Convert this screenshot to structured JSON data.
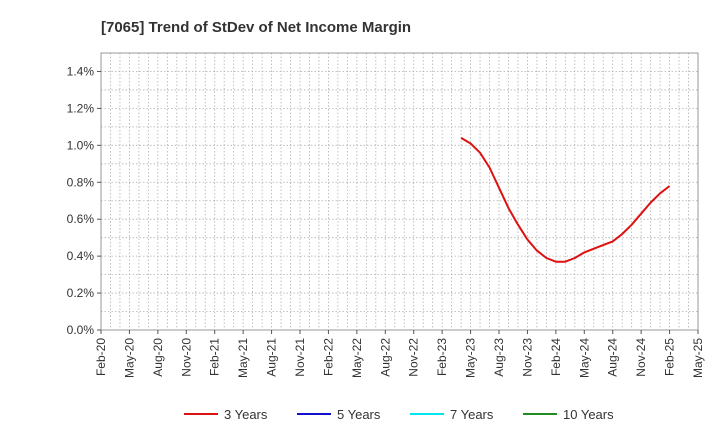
{
  "chart_data": {
    "type": "line",
    "title": "[7065]  Trend of StDev of Net Income Margin",
    "xlabel": "",
    "ylabel": "",
    "x_tick_labels": [
      "Feb-20",
      "May-20",
      "Aug-20",
      "Nov-20",
      "Feb-21",
      "May-21",
      "Aug-21",
      "Nov-21",
      "Feb-22",
      "May-22",
      "Aug-22",
      "Nov-22",
      "Feb-23",
      "May-23",
      "Aug-23",
      "Nov-23",
      "Feb-24",
      "May-24",
      "Aug-24",
      "Nov-24",
      "Feb-25",
      "May-25"
    ],
    "y_tick_labels": [
      "0.0%",
      "0.2%",
      "0.4%",
      "0.6%",
      "0.8%",
      "1.0%",
      "1.2%",
      "1.4%"
    ],
    "ylim": [
      0,
      1.5
    ],
    "grid": true,
    "legend_position": "bottom",
    "series": [
      {
        "name": "3 Years",
        "color": "#dd1111",
        "x": [
          "Apr-23",
          "May-23",
          "Jun-23",
          "Jul-23",
          "Aug-23",
          "Sep-23",
          "Oct-23",
          "Nov-23",
          "Dec-23",
          "Jan-24",
          "Feb-24",
          "Mar-24",
          "Apr-24",
          "May-24",
          "Jun-24",
          "Jul-24",
          "Aug-24",
          "Sep-24",
          "Oct-24",
          "Nov-24",
          "Dec-24",
          "Jan-25",
          "Feb-25"
        ],
        "values": [
          1.04,
          1.01,
          0.96,
          0.88,
          0.77,
          0.66,
          0.57,
          0.49,
          0.43,
          0.39,
          0.37,
          0.37,
          0.39,
          0.42,
          0.44,
          0.46,
          0.48,
          0.52,
          0.57,
          0.63,
          0.69,
          0.74,
          0.78
        ]
      },
      {
        "name": "5 Years",
        "color": "#1111cc",
        "x": [],
        "values": []
      },
      {
        "name": "7 Years",
        "color": "#00e5ee",
        "x": [],
        "values": []
      },
      {
        "name": "10 Years",
        "color": "#228b22",
        "x": [],
        "values": []
      }
    ]
  }
}
